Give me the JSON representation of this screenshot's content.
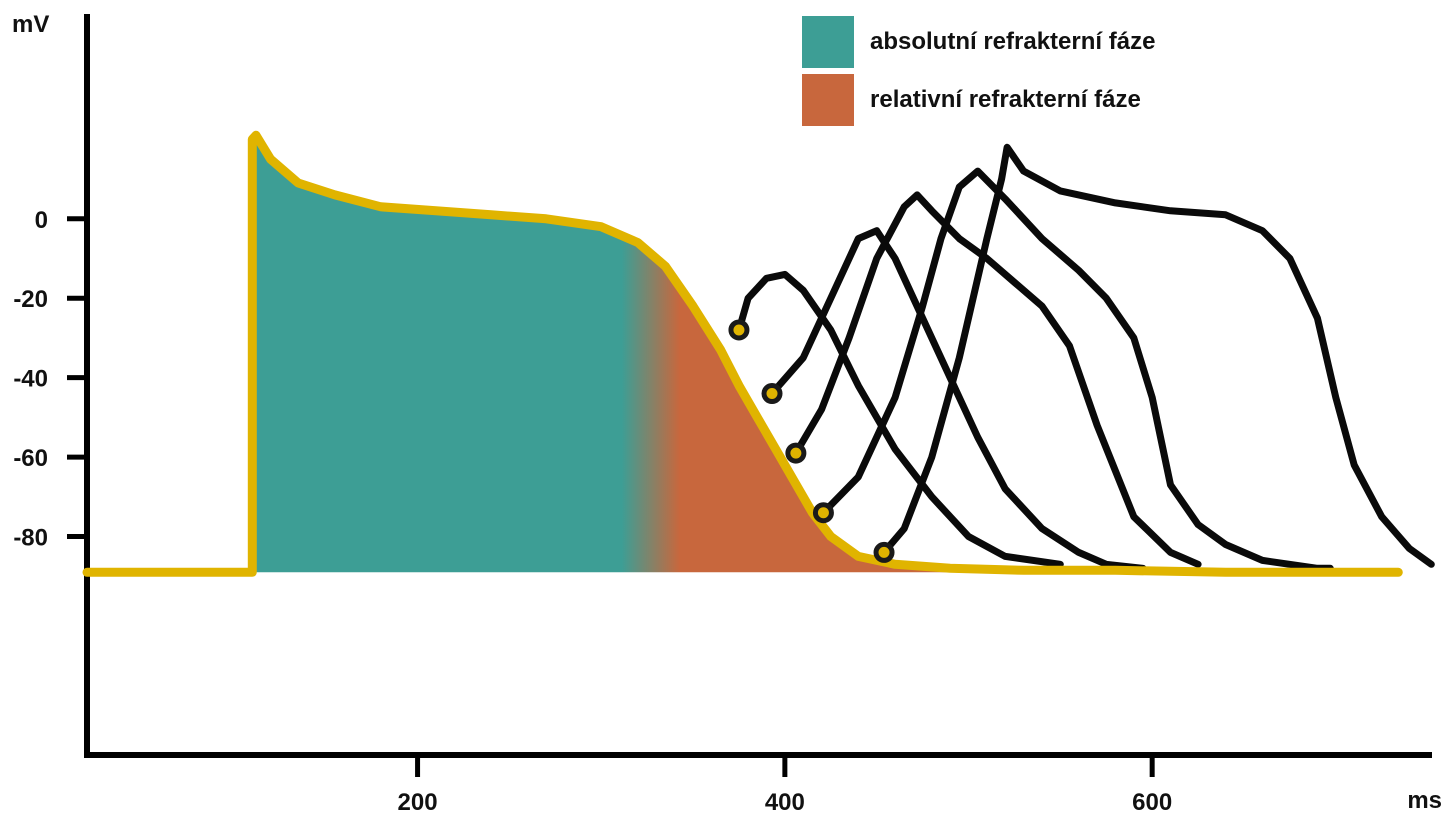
{
  "chart_data": {
    "type": "line",
    "title": "",
    "ylabel": "mV",
    "xlabel": "ms",
    "xlim": [
      20,
      760
    ],
    "ylim": [
      -135,
      45
    ],
    "x_ticks": [
      200,
      400,
      600
    ],
    "y_ticks": [
      {
        "value": 0,
        "label": "0"
      },
      {
        "value": -20,
        "label": "-20"
      },
      {
        "value": -40,
        "label": "-40"
      },
      {
        "value": -60,
        "label": "-60"
      },
      {
        "value": -80,
        "label": "-80"
      }
    ],
    "colors": {
      "absolute": "#3d9e95",
      "relative": "#c8673d",
      "main_trace": "#e0b400",
      "axes": "#000000",
      "traces": "#0a0a0a"
    },
    "legend": [
      {
        "label": "absolutní refrakterní fáze",
        "color": "#3d9e95"
      },
      {
        "label": "relativní refrakterní fáze",
        "color": "#c8673d"
      }
    ],
    "series": [
      {
        "role": "main_action_potential",
        "x": [
          20,
          110,
          110,
          112,
          120,
          135,
          155,
          180,
          210,
          240,
          270,
          300,
          320,
          335,
          350,
          365,
          375,
          385,
          395,
          405,
          415,
          425,
          440,
          460,
          490,
          530,
          580,
          640,
          700,
          734
        ],
        "y": [
          -89,
          -89,
          20,
          21,
          15,
          9,
          6,
          3,
          2,
          1,
          0,
          -2,
          -6,
          -12,
          -22,
          -33,
          -42,
          -50,
          -58,
          -66,
          -74,
          -80,
          -85,
          -87,
          -88,
          -88.5,
          -88.5,
          -89,
          -89,
          -89
        ]
      },
      {
        "role": "premature_1",
        "x": [
          375,
          380,
          390,
          400,
          410,
          425,
          440,
          460,
          480,
          500,
          520,
          550
        ],
        "y": [
          -28,
          -20,
          -15,
          -14,
          -18,
          -28,
          -42,
          -58,
          -70,
          -80,
          -85,
          -87
        ]
      },
      {
        "role": "premature_2",
        "x": [
          393,
          410,
          425,
          440,
          450,
          460,
          475,
          490,
          505,
          520,
          540,
          560,
          575,
          595
        ],
        "y": [
          -44,
          -35,
          -20,
          -5,
          -3,
          -10,
          -25,
          -40,
          -55,
          -68,
          -78,
          -84,
          -87,
          -88
        ]
      },
      {
        "role": "premature_3",
        "x": [
          406,
          420,
          435,
          450,
          465,
          472,
          480,
          495,
          510,
          525,
          540,
          555,
          570,
          590,
          610,
          625
        ],
        "y": [
          -59,
          -48,
          -30,
          -10,
          3,
          6,
          2,
          -5,
          -10,
          -16,
          -22,
          -32,
          -52,
          -75,
          -84,
          -87
        ]
      },
      {
        "role": "premature_4",
        "x": [
          421,
          440,
          460,
          475,
          485,
          495,
          505,
          520,
          540,
          560,
          575,
          590,
          600,
          610,
          625,
          640,
          660,
          690,
          697
        ],
        "y": [
          -74,
          -65,
          -45,
          -22,
          -5,
          8,
          12,
          5,
          -5,
          -13,
          -20,
          -30,
          -45,
          -67,
          -77,
          -82,
          -86,
          -88,
          -88
        ]
      },
      {
        "role": "premature_5",
        "x": [
          454,
          465,
          480,
          495,
          510,
          518,
          521,
          530,
          550,
          580,
          610,
          640,
          660,
          675,
          690,
          700,
          710,
          725,
          740,
          752
        ],
        "y": [
          -84,
          -78,
          -60,
          -35,
          -5,
          10,
          18,
          12,
          7,
          4,
          2,
          1,
          -3,
          -10,
          -25,
          -45,
          -62,
          -75,
          -83,
          -87
        ]
      }
    ],
    "markers": [
      {
        "x": 375,
        "y": -28
      },
      {
        "x": 393,
        "y": -44
      },
      {
        "x": 406,
        "y": -59
      },
      {
        "x": 421,
        "y": -74
      },
      {
        "x": 454,
        "y": -84
      }
    ]
  }
}
